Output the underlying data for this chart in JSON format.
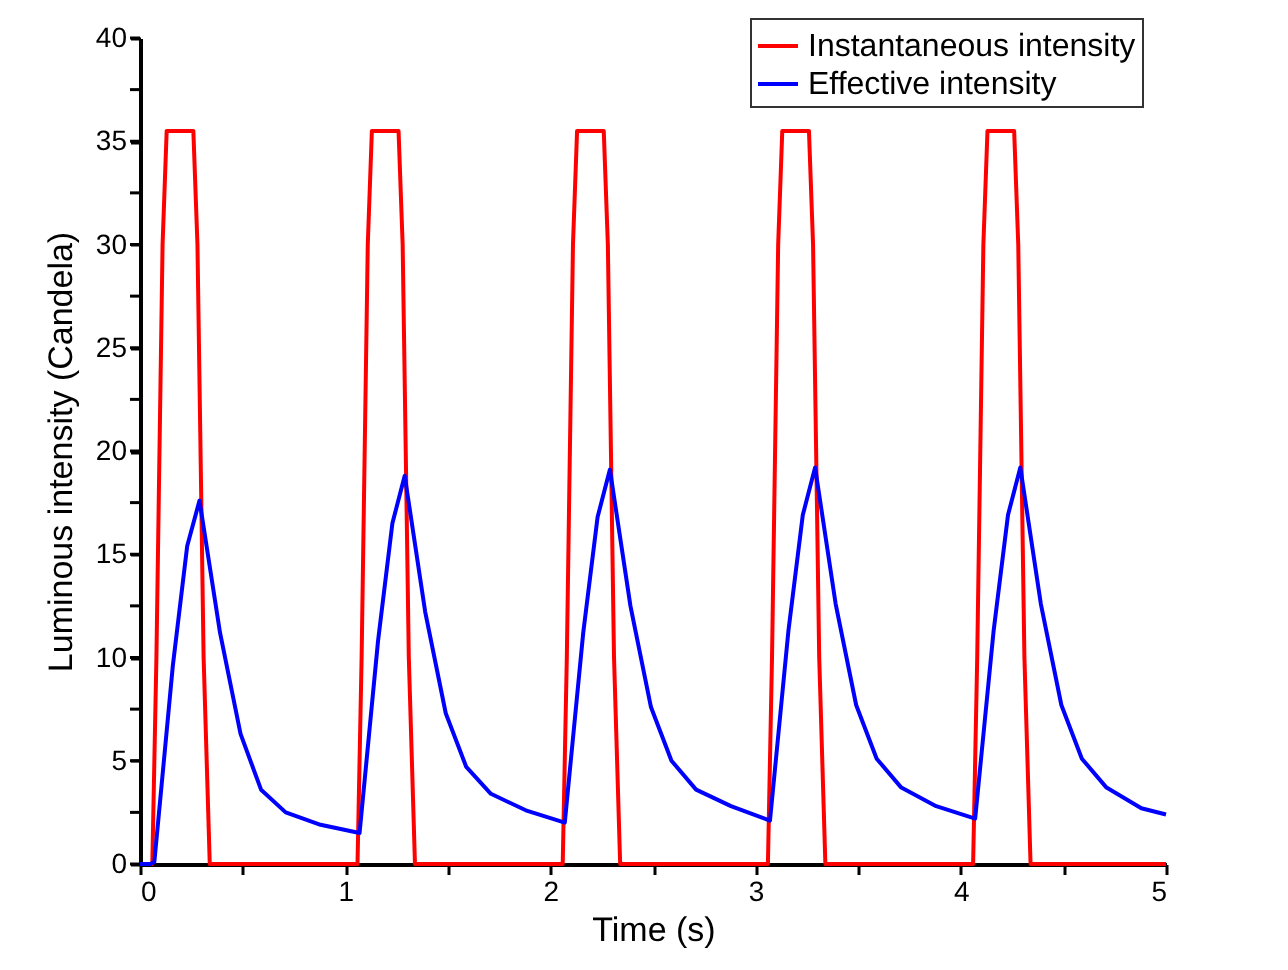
{
  "chart_data": {
    "type": "line",
    "xlabel": "Time (s)",
    "ylabel": "Luminous intensity (Candela)",
    "xlim": [
      0,
      5
    ],
    "ylim": [
      0,
      40
    ],
    "xticks": [
      0,
      {
        "value": 0.5,
        "label": null
      },
      1,
      {
        "value": 1.5,
        "label": null
      },
      2,
      {
        "value": 2.5,
        "label": null
      },
      3,
      {
        "value": 3.5,
        "label": null
      },
      4,
      {
        "value": 4.5,
        "label": null
      },
      5
    ],
    "yticks": [
      0,
      {
        "value": 2.5,
        "label": null
      },
      5,
      {
        "value": 7.5,
        "label": null
      },
      10,
      {
        "value": 12.5,
        "label": null
      },
      15,
      {
        "value": 17.5,
        "label": null
      },
      20,
      {
        "value": 22.5,
        "label": null
      },
      25,
      {
        "value": 27.5,
        "label": null
      },
      30,
      {
        "value": 32.5,
        "label": null
      },
      35,
      {
        "value": 37.5,
        "label": null
      },
      40
    ],
    "grid": false,
    "legend": "top right",
    "marker": "none",
    "line_style": "solid",
    "series": [
      {
        "name": "Instantaneous intensity",
        "color": "#ff0000",
        "x": [
          0,
          0.06,
          0.08,
          0.11,
          0.13,
          0.26,
          0.28,
          0.31,
          0.34,
          1.06,
          1.08,
          1.11,
          1.13,
          1.26,
          1.28,
          1.31,
          1.34,
          2.06,
          2.08,
          2.11,
          2.13,
          2.26,
          2.28,
          2.31,
          2.34,
          3.06,
          3.08,
          3.11,
          3.13,
          3.26,
          3.28,
          3.31,
          3.34,
          4.06,
          4.08,
          4.11,
          4.13,
          4.26,
          4.28,
          4.31,
          4.34,
          5.0
        ],
        "values": [
          0,
          0,
          10,
          30,
          35.5,
          35.5,
          30,
          10,
          0,
          0,
          10,
          30,
          35.5,
          35.5,
          30,
          10,
          0,
          0,
          10,
          30,
          35.5,
          35.5,
          30,
          10,
          0,
          0,
          10,
          30,
          35.5,
          35.5,
          30,
          10,
          0,
          0,
          10,
          30,
          35.5,
          35.5,
          30,
          10,
          0,
          0
        ]
      },
      {
        "name": "Effective intensity",
        "color": "#0000ff",
        "x": [
          0,
          0.05,
          0.07,
          0.16,
          0.23,
          0.29,
          0.39,
          0.49,
          0.59,
          0.71,
          0.88,
          1.07,
          1.16,
          1.23,
          1.29,
          1.39,
          1.49,
          1.59,
          1.71,
          1.88,
          2.07,
          2.16,
          2.23,
          2.29,
          2.39,
          2.49,
          2.59,
          2.71,
          2.88,
          3.07,
          3.16,
          3.23,
          3.29,
          3.39,
          3.49,
          3.59,
          3.71,
          3.88,
          4.07,
          4.16,
          4.23,
          4.29,
          4.39,
          4.49,
          4.59,
          4.71,
          4.88,
          5.0
        ],
        "values": [
          0,
          0,
          0.1,
          9.6,
          15.4,
          17.6,
          11.2,
          6.3,
          3.6,
          2.5,
          1.9,
          1.5,
          10.8,
          16.5,
          18.8,
          12.2,
          7.3,
          4.7,
          3.4,
          2.6,
          2.0,
          11.2,
          16.8,
          19.1,
          12.5,
          7.6,
          5.0,
          3.6,
          2.8,
          2.1,
          11.3,
          16.9,
          19.2,
          12.6,
          7.7,
          5.1,
          3.7,
          2.8,
          2.2,
          11.3,
          16.9,
          19.2,
          12.6,
          7.7,
          5.1,
          3.7,
          2.7,
          2.4
        ]
      }
    ]
  }
}
